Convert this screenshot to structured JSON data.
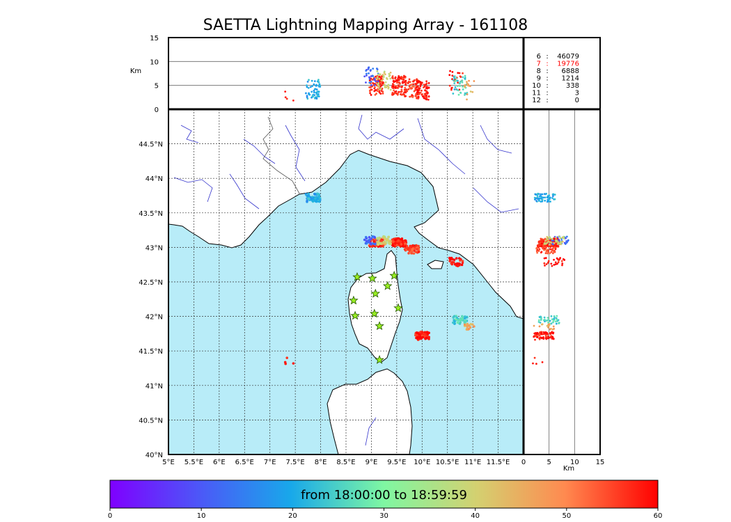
{
  "chart_data": {
    "type": "scatter",
    "title": "SAETTA Lightning Mapping Array - 161108",
    "map": {
      "lon_range": [
        5,
        12
      ],
      "lat_range": [
        40,
        45
      ],
      "x_ticks": [
        "5°E",
        "5.5°E",
        "6°E",
        "6.5°E",
        "7°E",
        "7.5°E",
        "8°E",
        "8.5°E",
        "9°E",
        "9.5°E",
        "10°E",
        "10.5°E",
        "11°E",
        "11.5°E"
      ],
      "y_ticks": [
        "40°N",
        "40.5°N",
        "41°N",
        "41.5°N",
        "42°N",
        "42.5°N",
        "43°N",
        "43.5°N",
        "44°N",
        "44.5°N"
      ],
      "grid": true,
      "sea_color": "#b8ecf8",
      "land_color": "#ffffff",
      "river_color": "#3333cc"
    },
    "top_panel": {
      "ylabel": "Km",
      "ylim": [
        0,
        15
      ],
      "y_ticks": [
        "0",
        "5",
        "10",
        "15"
      ]
    },
    "right_panel": {
      "xlabel": "Km",
      "xlim": [
        0,
        15
      ],
      "x_ticks": [
        "0",
        "5",
        "10",
        "15"
      ]
    },
    "station_counts": [
      {
        "stations": "6",
        "count": "46079",
        "color": "#000000"
      },
      {
        "stations": "7",
        "count": "19776",
        "color": "#ff0000"
      },
      {
        "stations": "8",
        "count": "6888",
        "color": "#000000"
      },
      {
        "stations": "9",
        "count": "1214",
        "color": "#000000"
      },
      {
        "stations": "10",
        "count": "338",
        "color": "#000000"
      },
      {
        "stations": "11",
        "count": "3",
        "color": "#000000"
      },
      {
        "stations": "12",
        "count": "0",
        "color": "#000000"
      }
    ],
    "sensor_stations": [
      {
        "lon": 8.72,
        "lat": 42.57
      },
      {
        "lon": 9.02,
        "lat": 42.55
      },
      {
        "lon": 9.45,
        "lat": 42.59
      },
      {
        "lon": 9.32,
        "lat": 42.44
      },
      {
        "lon": 9.08,
        "lat": 42.33
      },
      {
        "lon": 8.65,
        "lat": 42.23
      },
      {
        "lon": 9.53,
        "lat": 42.12
      },
      {
        "lon": 8.68,
        "lat": 42.01
      },
      {
        "lon": 9.06,
        "lat": 42.04
      },
      {
        "lon": 9.16,
        "lat": 41.86
      },
      {
        "lon": 9.16,
        "lat": 41.37
      }
    ],
    "lightning_clusters": [
      {
        "lon": 7.85,
        "lat": 43.72,
        "alt_km": 4.2,
        "time_min": 20,
        "count": 60
      },
      {
        "lon": 9.1,
        "lat": 43.07,
        "alt_km": 5,
        "time_min": 57,
        "count": 90
      },
      {
        "lon": 9.55,
        "lat": 43.07,
        "alt_km": 5,
        "time_min": 57,
        "count": 110
      },
      {
        "lon": 9.8,
        "lat": 42.97,
        "alt_km": 4.5,
        "time_min": 55,
        "count": 50
      },
      {
        "lon": 10.68,
        "lat": 42.79,
        "alt_km": 6,
        "time_min": 59,
        "count": 25
      },
      {
        "lon": 10.0,
        "lat": 41.72,
        "alt_km": 4,
        "time_min": 58,
        "count": 80
      },
      {
        "lon": 10.75,
        "lat": 41.95,
        "alt_km": 5,
        "time_min": 25,
        "count": 40
      },
      {
        "lon": 10.9,
        "lat": 41.85,
        "alt_km": 4,
        "time_min": 45,
        "count": 15
      },
      {
        "lon": 7.4,
        "lat": 41.37,
        "alt_km": 3,
        "time_min": 55,
        "count": 4
      },
      {
        "lon": 9.0,
        "lat": 43.1,
        "alt_km": 7,
        "time_min": 12,
        "count": 30
      },
      {
        "lon": 9.25,
        "lat": 43.1,
        "alt_km": 6,
        "time_min": 40,
        "count": 40
      }
    ],
    "colorbar": {
      "caption": "from 18:00:00 to 18:59:59",
      "range": [
        0,
        60
      ],
      "ticks": [
        "0",
        "10",
        "20",
        "30",
        "40",
        "50",
        "60"
      ]
    }
  }
}
